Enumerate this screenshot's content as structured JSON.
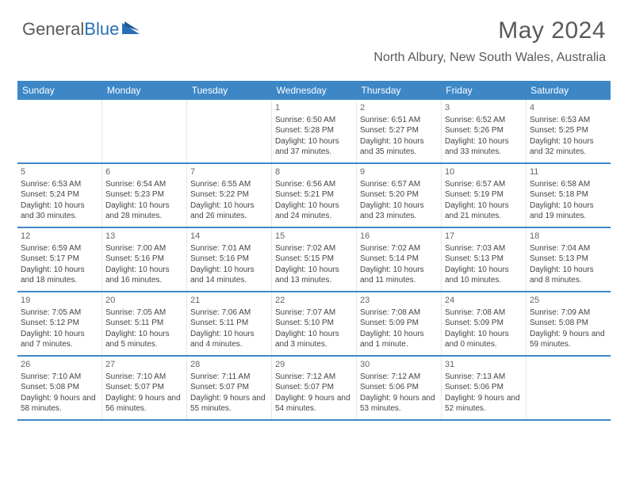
{
  "logo": {
    "text1": "General",
    "text2": "Blue"
  },
  "title": "May 2024",
  "location": "North Albury, New South Wales, Australia",
  "colors": {
    "accent": "#3d87c7",
    "text_muted": "#5a5a5a",
    "cell_border": "#e8e8e8",
    "bg": "#ffffff"
  },
  "fonts": {
    "title_pt": 30,
    "location_pt": 16,
    "header_pt": 12,
    "cell_pt": 10
  },
  "day_names": [
    "Sunday",
    "Monday",
    "Tuesday",
    "Wednesday",
    "Thursday",
    "Friday",
    "Saturday"
  ],
  "weeks": [
    [
      {
        "n": "",
        "sr": "",
        "ss": "",
        "dl": ""
      },
      {
        "n": "",
        "sr": "",
        "ss": "",
        "dl": ""
      },
      {
        "n": "",
        "sr": "",
        "ss": "",
        "dl": ""
      },
      {
        "n": "1",
        "sr": "Sunrise: 6:50 AM",
        "ss": "Sunset: 5:28 PM",
        "dl": "Daylight: 10 hours and 37 minutes."
      },
      {
        "n": "2",
        "sr": "Sunrise: 6:51 AM",
        "ss": "Sunset: 5:27 PM",
        "dl": "Daylight: 10 hours and 35 minutes."
      },
      {
        "n": "3",
        "sr": "Sunrise: 6:52 AM",
        "ss": "Sunset: 5:26 PM",
        "dl": "Daylight: 10 hours and 33 minutes."
      },
      {
        "n": "4",
        "sr": "Sunrise: 6:53 AM",
        "ss": "Sunset: 5:25 PM",
        "dl": "Daylight: 10 hours and 32 minutes."
      }
    ],
    [
      {
        "n": "5",
        "sr": "Sunrise: 6:53 AM",
        "ss": "Sunset: 5:24 PM",
        "dl": "Daylight: 10 hours and 30 minutes."
      },
      {
        "n": "6",
        "sr": "Sunrise: 6:54 AM",
        "ss": "Sunset: 5:23 PM",
        "dl": "Daylight: 10 hours and 28 minutes."
      },
      {
        "n": "7",
        "sr": "Sunrise: 6:55 AM",
        "ss": "Sunset: 5:22 PM",
        "dl": "Daylight: 10 hours and 26 minutes."
      },
      {
        "n": "8",
        "sr": "Sunrise: 6:56 AM",
        "ss": "Sunset: 5:21 PM",
        "dl": "Daylight: 10 hours and 24 minutes."
      },
      {
        "n": "9",
        "sr": "Sunrise: 6:57 AM",
        "ss": "Sunset: 5:20 PM",
        "dl": "Daylight: 10 hours and 23 minutes."
      },
      {
        "n": "10",
        "sr": "Sunrise: 6:57 AM",
        "ss": "Sunset: 5:19 PM",
        "dl": "Daylight: 10 hours and 21 minutes."
      },
      {
        "n": "11",
        "sr": "Sunrise: 6:58 AM",
        "ss": "Sunset: 5:18 PM",
        "dl": "Daylight: 10 hours and 19 minutes."
      }
    ],
    [
      {
        "n": "12",
        "sr": "Sunrise: 6:59 AM",
        "ss": "Sunset: 5:17 PM",
        "dl": "Daylight: 10 hours and 18 minutes."
      },
      {
        "n": "13",
        "sr": "Sunrise: 7:00 AM",
        "ss": "Sunset: 5:16 PM",
        "dl": "Daylight: 10 hours and 16 minutes."
      },
      {
        "n": "14",
        "sr": "Sunrise: 7:01 AM",
        "ss": "Sunset: 5:16 PM",
        "dl": "Daylight: 10 hours and 14 minutes."
      },
      {
        "n": "15",
        "sr": "Sunrise: 7:02 AM",
        "ss": "Sunset: 5:15 PM",
        "dl": "Daylight: 10 hours and 13 minutes."
      },
      {
        "n": "16",
        "sr": "Sunrise: 7:02 AM",
        "ss": "Sunset: 5:14 PM",
        "dl": "Daylight: 10 hours and 11 minutes."
      },
      {
        "n": "17",
        "sr": "Sunrise: 7:03 AM",
        "ss": "Sunset: 5:13 PM",
        "dl": "Daylight: 10 hours and 10 minutes."
      },
      {
        "n": "18",
        "sr": "Sunrise: 7:04 AM",
        "ss": "Sunset: 5:13 PM",
        "dl": "Daylight: 10 hours and 8 minutes."
      }
    ],
    [
      {
        "n": "19",
        "sr": "Sunrise: 7:05 AM",
        "ss": "Sunset: 5:12 PM",
        "dl": "Daylight: 10 hours and 7 minutes."
      },
      {
        "n": "20",
        "sr": "Sunrise: 7:05 AM",
        "ss": "Sunset: 5:11 PM",
        "dl": "Daylight: 10 hours and 5 minutes."
      },
      {
        "n": "21",
        "sr": "Sunrise: 7:06 AM",
        "ss": "Sunset: 5:11 PM",
        "dl": "Daylight: 10 hours and 4 minutes."
      },
      {
        "n": "22",
        "sr": "Sunrise: 7:07 AM",
        "ss": "Sunset: 5:10 PM",
        "dl": "Daylight: 10 hours and 3 minutes."
      },
      {
        "n": "23",
        "sr": "Sunrise: 7:08 AM",
        "ss": "Sunset: 5:09 PM",
        "dl": "Daylight: 10 hours and 1 minute."
      },
      {
        "n": "24",
        "sr": "Sunrise: 7:08 AM",
        "ss": "Sunset: 5:09 PM",
        "dl": "Daylight: 10 hours and 0 minutes."
      },
      {
        "n": "25",
        "sr": "Sunrise: 7:09 AM",
        "ss": "Sunset: 5:08 PM",
        "dl": "Daylight: 9 hours and 59 minutes."
      }
    ],
    [
      {
        "n": "26",
        "sr": "Sunrise: 7:10 AM",
        "ss": "Sunset: 5:08 PM",
        "dl": "Daylight: 9 hours and 58 minutes."
      },
      {
        "n": "27",
        "sr": "Sunrise: 7:10 AM",
        "ss": "Sunset: 5:07 PM",
        "dl": "Daylight: 9 hours and 56 minutes."
      },
      {
        "n": "28",
        "sr": "Sunrise: 7:11 AM",
        "ss": "Sunset: 5:07 PM",
        "dl": "Daylight: 9 hours and 55 minutes."
      },
      {
        "n": "29",
        "sr": "Sunrise: 7:12 AM",
        "ss": "Sunset: 5:07 PM",
        "dl": "Daylight: 9 hours and 54 minutes."
      },
      {
        "n": "30",
        "sr": "Sunrise: 7:12 AM",
        "ss": "Sunset: 5:06 PM",
        "dl": "Daylight: 9 hours and 53 minutes."
      },
      {
        "n": "31",
        "sr": "Sunrise: 7:13 AM",
        "ss": "Sunset: 5:06 PM",
        "dl": "Daylight: 9 hours and 52 minutes."
      },
      {
        "n": "",
        "sr": "",
        "ss": "",
        "dl": ""
      }
    ]
  ]
}
